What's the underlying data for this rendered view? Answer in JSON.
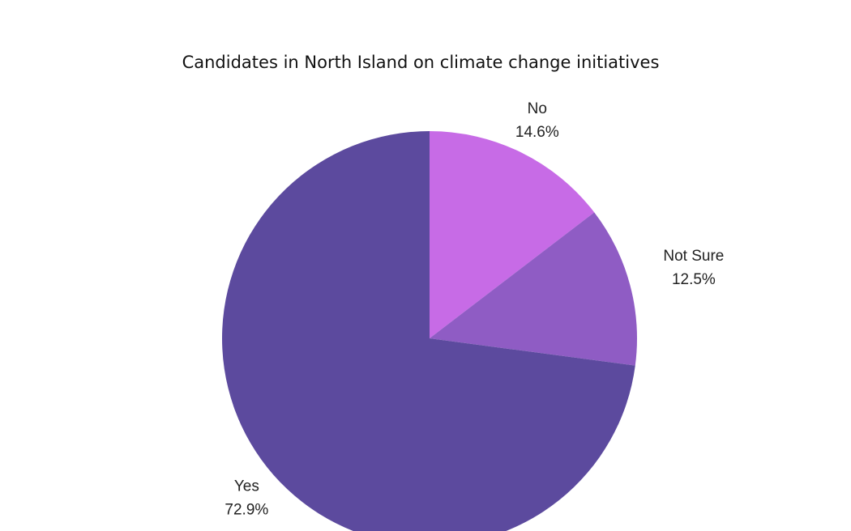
{
  "chart_data": {
    "type": "pie",
    "title": "Candidates in North Island on climate change initiatives",
    "categories": [
      "No",
      "Not Sure",
      "Yes"
    ],
    "values": [
      14.6,
      12.5,
      72.9
    ],
    "value_labels": [
      "14.6%",
      "12.5%",
      "72.9%"
    ],
    "colors": [
      "#c76be6",
      "#8f5cc4",
      "#5c4a9e"
    ]
  }
}
